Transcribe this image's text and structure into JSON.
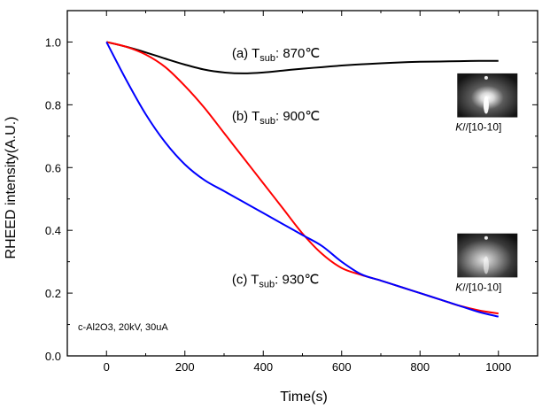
{
  "chart_data": {
    "type": "line",
    "xlabel": "Time(s)",
    "ylabel": "RHEED intensity(A.U.)",
    "xlim": [
      -100,
      1100
    ],
    "ylim": [
      0.0,
      1.1
    ],
    "xticks": [
      0,
      200,
      400,
      600,
      800,
      1000
    ],
    "yticks": [
      0.0,
      0.2,
      0.4,
      0.6,
      0.8,
      1.0
    ],
    "xtick_labels": [
      "0",
      "200",
      "400",
      "600",
      "800",
      "1000"
    ],
    "ytick_labels": [
      "0.0",
      "0.2",
      "0.4",
      "0.6",
      "0.8",
      "1.0"
    ],
    "series": [
      {
        "name": "(a) Tsub: 870°C",
        "color": "#000000",
        "x": [
          0,
          50,
          100,
          150,
          200,
          250,
          300,
          350,
          400,
          450,
          500,
          550,
          600,
          650,
          700,
          750,
          800,
          850,
          900,
          950,
          1000
        ],
        "y": [
          1.0,
          0.985,
          0.967,
          0.947,
          0.928,
          0.912,
          0.903,
          0.9,
          0.903,
          0.909,
          0.915,
          0.92,
          0.925,
          0.929,
          0.932,
          0.935,
          0.937,
          0.938,
          0.939,
          0.94,
          0.94
        ]
      },
      {
        "name": "(b) Tsub: 900°C",
        "color": "#ff0000",
        "x": [
          0,
          50,
          100,
          150,
          200,
          250,
          300,
          350,
          400,
          450,
          500,
          550,
          600,
          650,
          700,
          750,
          800,
          850,
          900,
          950,
          1000
        ],
        "y": [
          1.0,
          0.985,
          0.96,
          0.92,
          0.86,
          0.79,
          0.71,
          0.63,
          0.55,
          0.47,
          0.39,
          0.325,
          0.28,
          0.258,
          0.24,
          0.22,
          0.2,
          0.18,
          0.16,
          0.145,
          0.135
        ]
      },
      {
        "name": "(c) Tsub: 930°C",
        "color": "#0000ff",
        "x": [
          0,
          50,
          100,
          150,
          200,
          250,
          300,
          350,
          400,
          450,
          500,
          550,
          600,
          650,
          700,
          750,
          800,
          850,
          900,
          950,
          1000
        ],
        "y": [
          1.0,
          0.88,
          0.77,
          0.68,
          0.61,
          0.56,
          0.525,
          0.49,
          0.455,
          0.42,
          0.385,
          0.35,
          0.3,
          0.26,
          0.24,
          0.22,
          0.2,
          0.18,
          0.16,
          0.14,
          0.125
        ]
      }
    ],
    "annotations": [
      {
        "main": "(a) T",
        "sub": "sub",
        "suffix": ": 870℃",
        "x": 320,
        "y": 0.95
      },
      {
        "main": "(b) T",
        "sub": "sub",
        "suffix": ": 900℃",
        "x": 320,
        "y": 0.75
      },
      {
        "main": "(c) T",
        "sub": "sub",
        "suffix": ": 930℃",
        "x": 320,
        "y": 0.23
      }
    ],
    "note": "c-Al2O3, 20kV, 30uA",
    "insets": [
      {
        "caption_italic": "K",
        "caption_rest": "//[10-10]",
        "x0": 895,
        "y_top": 0.9,
        "y_bottom": 0.76
      },
      {
        "caption_italic": "K",
        "caption_rest": "//[10-10]",
        "x0": 895,
        "y_top": 0.39,
        "y_bottom": 0.25
      }
    ]
  }
}
